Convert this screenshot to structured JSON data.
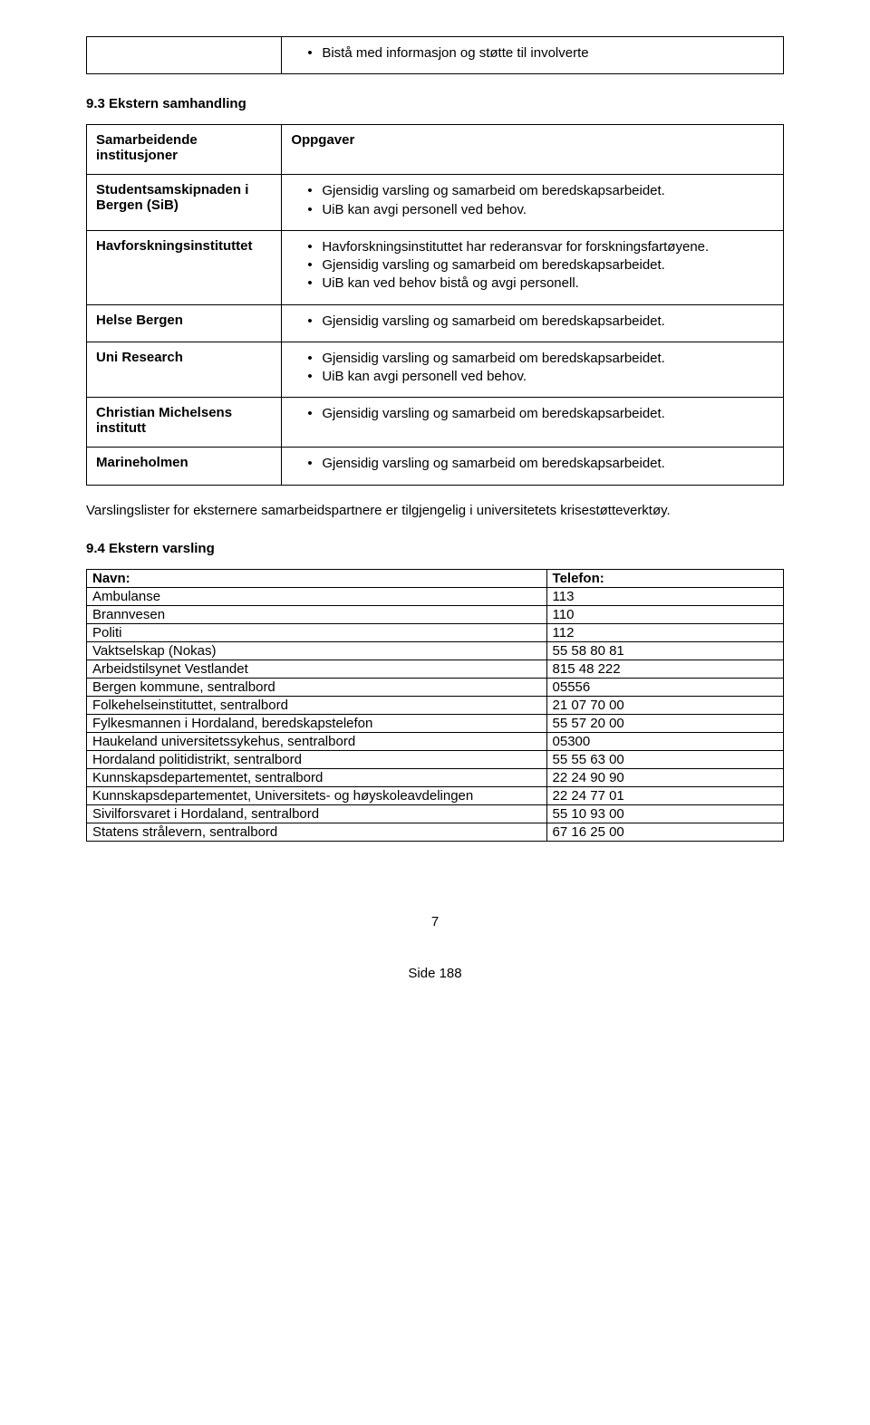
{
  "topRow": {
    "bullet": "Bistå med informasjon og støtte til involverte"
  },
  "heading93": "9.3 Ekstern samhandling",
  "headerRow": {
    "left": "Samarbeidende institusjoner",
    "right": "Oppgaver"
  },
  "partners": [
    {
      "name": "Studentsamskipnaden i Bergen (SiB)",
      "bullets": [
        "Gjensidig varsling og samarbeid om beredskapsarbeidet.",
        "UiB kan avgi personell ved behov."
      ]
    },
    {
      "name": "Havforskningsinstituttet",
      "bullets": [
        "Havforskningsinstituttet har rederansvar for forskningsfartøyene.",
        "Gjensidig varsling og samarbeid om beredskapsarbeidet.",
        "UiB kan ved behov bistå og avgi personell."
      ]
    },
    {
      "name": "Helse Bergen",
      "bullets": [
        "Gjensidig varsling og samarbeid om beredskapsarbeidet."
      ]
    },
    {
      "name": "Uni Research",
      "bullets": [
        "Gjensidig varsling og samarbeid om beredskapsarbeidet.",
        "UiB kan avgi personell ved behov."
      ]
    },
    {
      "name": "Christian Michelsens institutt",
      "bullets": [
        "Gjensidig varsling og samarbeid om beredskapsarbeidet."
      ]
    },
    {
      "name": "Marineholmen",
      "bullets": [
        "Gjensidig varsling og samarbeid om beredskapsarbeidet."
      ]
    }
  ],
  "midParagraph": "Varslingslister for eksternere samarbeidspartnere er tilgjengelig i universitetets krisestøtteverktøy.",
  "heading94": "9.4 Ekstern varsling",
  "contactsHeader": {
    "name": "Navn:",
    "phone": "Telefon:"
  },
  "contacts": [
    {
      "name": "Ambulanse",
      "phone": "113"
    },
    {
      "name": "Brannvesen",
      "phone": "110"
    },
    {
      "name": "Politi",
      "phone": "112"
    },
    {
      "name": "Vaktselskap (Nokas)",
      "phone": "55 58 80 81"
    },
    {
      "name": "Arbeidstilsynet Vestlandet",
      "phone": "815 48 222"
    },
    {
      "name": "Bergen kommune, sentralbord",
      "phone": "05556"
    },
    {
      "name": "Folkehelseinstituttet, sentralbord",
      "phone": "21 07 70 00"
    },
    {
      "name": "Fylkesmannen i Hordaland, beredskapstelefon",
      "phone": "55 57 20 00"
    },
    {
      "name": "Haukeland universitetssykehus, sentralbord",
      "phone": "05300"
    },
    {
      "name": "Hordaland politidistrikt, sentralbord",
      "phone": "55 55 63 00"
    },
    {
      "name": "Kunnskapsdepartementet, sentralbord",
      "phone": "22 24 90 90"
    },
    {
      "name": "Kunnskapsdepartementet, Universitets- og høyskoleavdelingen",
      "phone": "22 24 77 01"
    },
    {
      "name": "Sivilforsvaret i Hordaland, sentralbord",
      "phone": "55 10 93 00"
    },
    {
      "name": "Statens strålevern, sentralbord",
      "phone": "67 16 25 00"
    }
  ],
  "pageNumber": "7",
  "sideNumber": "Side 188"
}
